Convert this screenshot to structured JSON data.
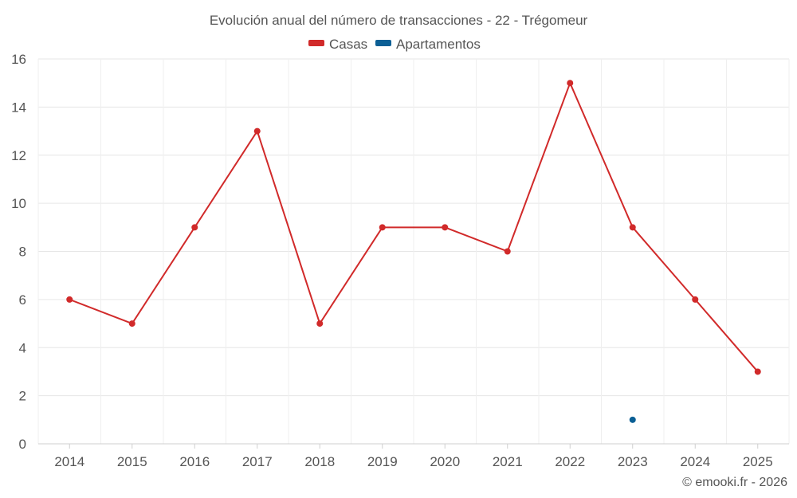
{
  "chart_data": {
    "type": "line",
    "title": "Evolución anual del número de transacciones - 22 - Trégomeur",
    "categories": [
      "2014",
      "2015",
      "2016",
      "2017",
      "2018",
      "2019",
      "2020",
      "2021",
      "2022",
      "2023",
      "2024",
      "2025"
    ],
    "series": [
      {
        "name": "Casas",
        "color": "#d12a2a",
        "values": [
          6,
          5,
          9,
          13,
          5,
          9,
          9,
          8,
          15,
          9,
          6,
          3
        ]
      },
      {
        "name": "Apartamentos",
        "color": "#0b5f95",
        "values": [
          null,
          null,
          null,
          null,
          null,
          null,
          null,
          null,
          null,
          1,
          null,
          null
        ]
      }
    ],
    "ylim": [
      0,
      16
    ],
    "yticks": [
      0,
      2,
      4,
      6,
      8,
      10,
      12,
      14,
      16
    ],
    "xlabel": "",
    "ylabel": "",
    "grid": true,
    "legend_position": "top-center"
  },
  "credit": "© emooki.fr - 2026"
}
